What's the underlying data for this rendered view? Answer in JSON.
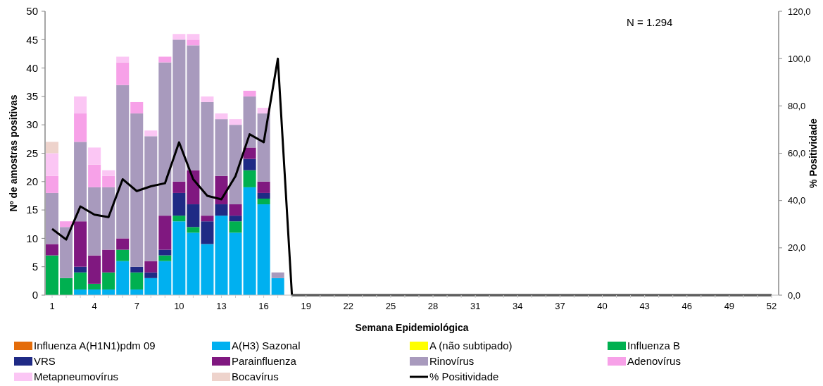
{
  "chart_data": {
    "type": "bar",
    "stacked": true,
    "xlabel": "Semana Epidemiológica",
    "ylabel": "Nº de amostras positivas",
    "y2label": "% Positividade",
    "annotations": [
      "N = 1.294"
    ],
    "legend": "bottom",
    "ylim": [
      0,
      50
    ],
    "yticks": [
      0,
      5,
      10,
      15,
      20,
      25,
      30,
      35,
      40,
      45,
      50
    ],
    "y2lim": [
      0,
      120
    ],
    "y2ticks": [
      {
        "value": 0,
        "label": "0,0"
      },
      {
        "value": 20,
        "label": "20,0"
      },
      {
        "value": 40,
        "label": "40,0"
      },
      {
        "value": 60,
        "label": "60,0"
      },
      {
        "value": 80,
        "label": "80,0"
      },
      {
        "value": 100,
        "label": "100,0"
      },
      {
        "value": 120,
        "label": "120,0"
      }
    ],
    "categories": [
      "1",
      null,
      null,
      "4",
      null,
      null,
      "7",
      null,
      null,
      "10",
      null,
      null,
      "13",
      null,
      null,
      "16",
      null,
      null,
      "19",
      null,
      null,
      "22",
      null,
      null,
      "25",
      null,
      null,
      "28",
      null,
      null,
      "31",
      null,
      null,
      "34",
      null,
      null,
      "37",
      null,
      null,
      "40",
      null,
      null,
      "43",
      null,
      null,
      "46",
      null,
      null,
      "49",
      null,
      null,
      "52"
    ],
    "series": [
      {
        "name": "Influenza A(H1N1)pdm 09",
        "color": "#e46c0a",
        "values": [
          0,
          0,
          0,
          0,
          0,
          0,
          0,
          0,
          0,
          0,
          0,
          0,
          0,
          0,
          0,
          0,
          0,
          null,
          null,
          null,
          null,
          null,
          null,
          null,
          null,
          null,
          null,
          null,
          null,
          null,
          null,
          null,
          null,
          null,
          null,
          null,
          null,
          null,
          null,
          null,
          null,
          null,
          null,
          null,
          null,
          null,
          null,
          null,
          null,
          null,
          null,
          null
        ]
      },
      {
        "name": "A(H3) Sazonal",
        "color": "#00b0f0",
        "values": [
          0,
          0,
          1,
          1,
          1,
          6,
          1,
          3,
          6,
          13,
          11,
          9,
          14,
          11,
          19,
          16,
          3,
          null,
          null,
          null,
          null,
          null,
          null,
          null,
          null,
          null,
          null,
          null,
          null,
          null,
          null,
          null,
          null,
          null,
          null,
          null,
          null,
          null,
          null,
          null,
          null,
          null,
          null,
          null,
          null,
          null,
          null,
          null,
          null,
          null,
          null,
          null
        ]
      },
      {
        "name": "A (não subtipado)",
        "color": "#ffff00",
        "values": [
          0,
          0,
          0,
          0,
          0,
          0,
          0,
          0,
          0,
          0,
          0,
          0,
          0,
          0,
          0,
          0,
          0,
          null,
          null,
          null,
          null,
          null,
          null,
          null,
          null,
          null,
          null,
          null,
          null,
          null,
          null,
          null,
          null,
          null,
          null,
          null,
          null,
          null,
          null,
          null,
          null,
          null,
          null,
          null,
          null,
          null,
          null,
          null,
          null,
          null,
          null,
          null
        ]
      },
      {
        "name": "Influenza B",
        "color": "#00b050",
        "values": [
          7,
          3,
          3,
          1,
          3,
          2,
          3,
          0,
          1,
          1,
          1,
          0,
          0,
          2,
          3,
          1,
          0,
          null,
          null,
          null,
          null,
          null,
          null,
          null,
          null,
          null,
          null,
          null,
          null,
          null,
          null,
          null,
          null,
          null,
          null,
          null,
          null,
          null,
          null,
          null,
          null,
          null,
          null,
          null,
          null,
          null,
          null,
          null,
          null,
          null,
          null,
          null
        ]
      },
      {
        "name": "VRS",
        "color": "#1f2a85",
        "values": [
          0,
          0,
          1,
          0,
          0,
          0,
          1,
          1,
          1,
          4,
          4,
          4,
          2,
          1,
          2,
          1,
          0,
          null,
          null,
          null,
          null,
          null,
          null,
          null,
          null,
          null,
          null,
          null,
          null,
          null,
          null,
          null,
          null,
          null,
          null,
          null,
          null,
          null,
          null,
          null,
          null,
          null,
          null,
          null,
          null,
          null,
          null,
          null,
          null,
          null,
          null,
          null
        ]
      },
      {
        "name": "Parainfluenza",
        "color": "#801880",
        "values": [
          2,
          0,
          8,
          5,
          4,
          2,
          0,
          2,
          6,
          2,
          6,
          1,
          5,
          2,
          2,
          2,
          0,
          null,
          null,
          null,
          null,
          null,
          null,
          null,
          null,
          null,
          null,
          null,
          null,
          null,
          null,
          null,
          null,
          null,
          null,
          null,
          null,
          null,
          null,
          null,
          null,
          null,
          null,
          null,
          null,
          null,
          null,
          null,
          null,
          null,
          null,
          null
        ]
      },
      {
        "name": "Rinovírus",
        "color": "#a89abd",
        "values": [
          9,
          9,
          14,
          12,
          11,
          27,
          27,
          22,
          27,
          25,
          22,
          20,
          10,
          14,
          9,
          12,
          1,
          null,
          null,
          null,
          null,
          null,
          null,
          null,
          null,
          null,
          null,
          null,
          null,
          null,
          null,
          null,
          null,
          null,
          null,
          null,
          null,
          null,
          null,
          null,
          null,
          null,
          null,
          null,
          null,
          null,
          null,
          null,
          null,
          null,
          null,
          null
        ]
      },
      {
        "name": "Adenovírus",
        "color": "#f7a1e8",
        "values": [
          3,
          1,
          5,
          4,
          2,
          4,
          2,
          0,
          1,
          0,
          1,
          0,
          0,
          0,
          1,
          0,
          0,
          null,
          null,
          null,
          null,
          null,
          null,
          null,
          null,
          null,
          null,
          null,
          null,
          null,
          null,
          null,
          null,
          null,
          null,
          null,
          null,
          null,
          null,
          null,
          null,
          null,
          null,
          null,
          null,
          null,
          null,
          null,
          null,
          null,
          null,
          null
        ]
      },
      {
        "name": "Metapneumovírus",
        "color": "#fbc6f4",
        "values": [
          4,
          0,
          3,
          3,
          1,
          1,
          0,
          1,
          0,
          1,
          1,
          1,
          1,
          1,
          0,
          1,
          0,
          null,
          null,
          null,
          null,
          null,
          null,
          null,
          null,
          null,
          null,
          null,
          null,
          null,
          null,
          null,
          null,
          null,
          null,
          null,
          null,
          null,
          null,
          null,
          null,
          null,
          null,
          null,
          null,
          null,
          null,
          null,
          null,
          null,
          null,
          null
        ]
      },
      {
        "name": "Bocavírus",
        "color": "#eed3cc",
        "values": [
          2,
          0,
          0,
          0,
          0,
          0,
          0,
          0,
          0,
          0,
          0,
          0,
          0,
          0,
          0,
          0,
          0,
          null,
          null,
          null,
          null,
          null,
          null,
          null,
          null,
          null,
          null,
          null,
          null,
          null,
          null,
          null,
          null,
          null,
          null,
          null,
          null,
          null,
          null,
          null,
          null,
          null,
          null,
          null,
          null,
          null,
          null,
          null,
          null,
          null,
          null,
          null
        ]
      },
      {
        "name": "% Positividade",
        "type": "line",
        "axis": "y2",
        "color": "#000000",
        "marker": "none",
        "values": [
          28,
          23.5,
          37.5,
          34,
          33,
          49,
          44,
          46,
          47.3,
          64.6,
          49,
          42,
          40.5,
          50.3,
          68,
          64.6,
          100,
          0,
          0,
          0,
          0,
          0,
          0,
          0,
          0,
          0,
          0,
          0,
          0,
          0,
          0,
          0,
          0,
          0,
          0,
          0,
          0,
          0,
          0,
          0,
          0,
          0,
          0,
          0,
          0,
          0,
          0,
          0,
          0,
          0,
          0,
          0
        ]
      }
    ]
  }
}
